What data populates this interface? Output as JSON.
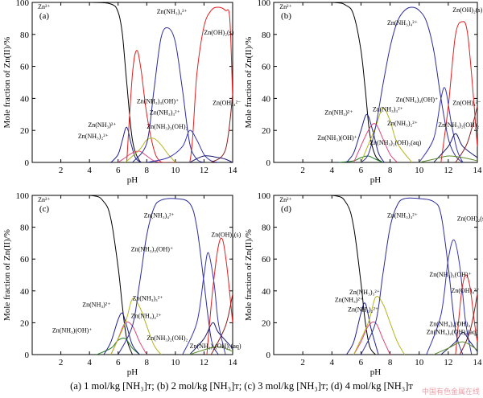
{
  "caption": "(a) 1 mol/kg [NH₃]ᴛ; (b) 2 mol/kg [NH₃]ᴛ; (c) 3 mol/kg [NH₃]ᴛ; (d) 4 mol/kg [NH₃]ᴛ",
  "watermark": "中国有色金属在线",
  "colors": {
    "Zn2+": "#000000",
    "Zn(NH3)2+": "#1f1f8f",
    "Zn(NH3)2 2+": "#e0457a",
    "Zn(NH3)3 2+": "#b5b520",
    "Zn(NH3)4 2+": "#2b2b9a",
    "Zn(NH3)(OH)+": "#1f7f1f",
    "Zn(NH3)3(OH)+": "#3434b4",
    "Zn(NH3)2(OH)2(aq)": "#5a8a2a",
    "Zn(OH)2(s)": "#e02020",
    "Zn(OH)3-": "#1a1a6e",
    "Zn(OH)4 2-": "#8a1a1a"
  },
  "chart_data": [
    {
      "type": "line",
      "panel": "(a)",
      "xlabel": "pH",
      "ylabel": "Mole fraction of Zn(II)/%",
      "xlim": [
        0,
        14
      ],
      "ylim": [
        0,
        100
      ],
      "xticks": [
        2,
        4,
        6,
        8,
        10,
        12,
        14
      ],
      "yticks": [
        0,
        20,
        40,
        60,
        80,
        100
      ],
      "series": [
        {
          "name": "Zn²⁺",
          "x": [
            0,
            4,
            5.5,
            6,
            6.3,
            6.6,
            7,
            7.5,
            8
          ],
          "y": [
            100,
            100,
            99,
            94,
            80,
            50,
            14,
            1,
            0
          ]
        },
        {
          "name": "Zn(NH₃)²⁺",
          "x": [
            5.5,
            6,
            6.3,
            6.6,
            6.9,
            7.2,
            7.6
          ],
          "y": [
            0,
            5,
            14,
            22,
            12,
            3,
            0
          ]
        },
        {
          "name": "Zn(NH₃)₂²⁺",
          "x": [
            6,
            6.5,
            7,
            7.5,
            8,
            8.5,
            9
          ],
          "y": [
            0,
            3,
            6,
            7,
            4,
            1,
            0
          ]
        },
        {
          "name": "Zn(OH)₂(s)",
          "x": [
            6.6,
            7,
            7.3,
            7.6,
            8,
            8.5,
            8.9,
            9.3,
            10,
            11,
            11.5,
            12,
            12.5,
            13,
            13.5,
            13.8,
            14
          ],
          "y": [
            0,
            55,
            70,
            58,
            30,
            8,
            1,
            0,
            0,
            0,
            55,
            85,
            95,
            97,
            95,
            90,
            40
          ]
        },
        {
          "name": "Zn(NH₃)₃²⁺",
          "x": [
            6.5,
            7.5,
            8,
            8.5,
            9,
            9.5,
            10
          ],
          "y": [
            0,
            8,
            14,
            15,
            11,
            5,
            0
          ]
        },
        {
          "name": "Zn(NH₃)₄²⁺",
          "x": [
            7,
            8,
            8.5,
            9,
            9.5,
            10,
            10.5,
            11,
            11.5,
            12
          ],
          "y": [
            0,
            12,
            45,
            78,
            84,
            75,
            45,
            12,
            2,
            0
          ]
        },
        {
          "name": "Zn(NH₃)₃(OH)⁺",
          "x": [
            8,
            9.5,
            10.5,
            11,
            11.5,
            12,
            12.5,
            13
          ],
          "y": [
            0,
            3,
            10,
            20,
            14,
            5,
            1,
            0
          ]
        },
        {
          "name": "Zn(OH)₄²⁻",
          "x": [
            12.5,
            13.5,
            14
          ],
          "y": [
            0,
            8,
            42
          ]
        },
        {
          "name": "Zn(NH₃)₂(OH)₂",
          "x": [
            11,
            12,
            13,
            13.5,
            14
          ],
          "y": [
            0,
            4,
            3,
            2,
            0
          ]
        }
      ],
      "annotations": [
        "(a)",
        "Zn²⁺",
        "Zn(NH₃)₄²⁺",
        "Zn(OH)₂(s)",
        "Zn(NH₃)₃(OH)⁺",
        "Zn(NH₃)₃²⁺",
        "Zn(OH)₄²⁻",
        "Zn(NH₃)²⁺",
        "Zn(NH₃)₂²⁺",
        "Zn(NH₃)₃(OH)₂"
      ]
    },
    {
      "type": "line",
      "panel": "(b)",
      "xlabel": "pH",
      "ylabel": "Mole fraction of Zn(II)/%",
      "xlim": [
        0,
        14
      ],
      "ylim": [
        0,
        100
      ],
      "xticks": [
        2,
        4,
        6,
        8,
        10,
        12,
        14
      ],
      "yticks": [
        0,
        20,
        40,
        60,
        80,
        100
      ],
      "series": [
        {
          "name": "Zn²⁺",
          "x": [
            0,
            4,
            5,
            5.5,
            6,
            6.3,
            6.6,
            7,
            7.5
          ],
          "y": [
            100,
            100,
            98,
            92,
            70,
            45,
            18,
            4,
            0
          ]
        },
        {
          "name": "Zn(NH₃)(OH)⁺",
          "x": [
            4.5,
            5.5,
            6,
            6.5,
            7,
            7.5
          ],
          "y": [
            0,
            1,
            3,
            4,
            2,
            0
          ]
        },
        {
          "name": "Zn(NH₃)²⁺",
          "x": [
            5,
            5.5,
            6,
            6.4,
            6.8,
            7.2,
            7.6
          ],
          "y": [
            0,
            6,
            20,
            30,
            20,
            6,
            0
          ]
        },
        {
          "name": "Zn(NH₃)₂²⁺",
          "x": [
            5.5,
            6.5,
            7,
            7.5,
            8,
            8.5
          ],
          "y": [
            0,
            20,
            24,
            15,
            5,
            0
          ]
        },
        {
          "name": "Zn(NH₃)₃²⁺",
          "x": [
            6,
            7,
            7.5,
            8,
            8.5,
            9.5
          ],
          "y": [
            0,
            22,
            34,
            26,
            12,
            0
          ]
        },
        {
          "name": "Zn(NH₃)₄²⁺",
          "x": [
            6,
            6.5,
            7,
            7.5,
            8,
            8.5,
            9,
            9.5,
            10,
            10.5,
            11,
            11.5,
            12,
            12.5,
            13
          ],
          "y": [
            0,
            5,
            22,
            48,
            72,
            88,
            95,
            97,
            95,
            88,
            70,
            40,
            15,
            4,
            0
          ]
        },
        {
          "name": "Zn(NH₃)₃(OH)⁺",
          "x": [
            10,
            11,
            11.5,
            11.8,
            12.2,
            12.6,
            13
          ],
          "y": [
            0,
            15,
            40,
            46,
            25,
            8,
            0
          ]
        },
        {
          "name": "Zn(OH)₂(s)",
          "x": [
            11.5,
            12,
            12.5,
            13,
            13.3,
            13.6,
            14
          ],
          "y": [
            0,
            35,
            80,
            88,
            82,
            55,
            10
          ]
        },
        {
          "name": "Zn(OH)₄²⁻",
          "x": [
            12.5,
            13.3,
            14
          ],
          "y": [
            0,
            12,
            35
          ]
        },
        {
          "name": "Zn(NH₃)₂(OH)₂",
          "x": [
            11,
            12,
            12.5,
            13,
            14
          ],
          "y": [
            0,
            10,
            18,
            10,
            3
          ]
        },
        {
          "name": "Zn(NH₃)₂(OH)₂(aq)",
          "x": [
            10,
            11,
            12,
            13,
            14
          ],
          "y": [
            0,
            2,
            4,
            3,
            1
          ]
        }
      ],
      "annotations": [
        "(b)",
        "Zn²⁺",
        "Zn(NH₃)₄²⁺",
        "Zn(OH)₂(s)",
        "Zn(NH₃)₃(OH)⁺",
        "Zn(NH₃)₃²⁺",
        "Zn(NH₃)²⁺",
        "Zn(NH₃)₂²⁺",
        "Zn(OH)₄²⁻",
        "Zn(NH₃)₂(OH)₂",
        "Zn(NH₃)(OH)⁺",
        "Zn(NH₃)₂(OH)₂(aq)"
      ]
    },
    {
      "type": "line",
      "panel": "(c)",
      "xlabel": "pH",
      "ylabel": "Mole fraction of Zn(II)/%",
      "xlim": [
        0,
        14
      ],
      "ylim": [
        0,
        100
      ],
      "xticks": [
        2,
        4,
        6,
        8,
        10,
        12,
        14
      ],
      "yticks": [
        0,
        20,
        40,
        60,
        80,
        100
      ],
      "series": [
        {
          "name": "Zn²⁺",
          "x": [
            0,
            4,
            5,
            5.5,
            6,
            6.3,
            6.6,
            7
          ],
          "y": [
            100,
            100,
            96,
            85,
            55,
            30,
            10,
            0
          ]
        },
        {
          "name": "Zn(NH₃)(OH)⁺",
          "x": [
            4.5,
            5.5,
            6,
            6.5,
            7,
            7.5
          ],
          "y": [
            0,
            4,
            9,
            10,
            4,
            0
          ]
        },
        {
          "name": "Zn(NH₃)²⁺",
          "x": [
            5,
            5.5,
            6,
            6.3,
            6.6,
            7,
            7.5
          ],
          "y": [
            0,
            8,
            22,
            26,
            18,
            6,
            0
          ]
        },
        {
          "name": "Zn(NH₃)₂²⁺",
          "x": [
            5.5,
            6,
            6.5,
            7,
            7.5,
            8
          ],
          "y": [
            0,
            10,
            20,
            18,
            8,
            0
          ]
        },
        {
          "name": "Zn(NH₃)₃²⁺",
          "x": [
            5.5,
            6.5,
            7,
            7.5,
            8,
            8.5,
            9
          ],
          "y": [
            0,
            20,
            35,
            30,
            18,
            6,
            0
          ]
        },
        {
          "name": "Zn(NH₃)₄²⁺",
          "x": [
            6,
            7,
            7.5,
            8,
            8.5,
            9,
            10,
            11,
            11.5,
            12,
            12.5,
            13
          ],
          "y": [
            0,
            18,
            45,
            75,
            92,
            97,
            98,
            95,
            80,
            45,
            10,
            0
          ]
        },
        {
          "name": "Zn(NH₃)₃(OH)⁺",
          "x": [
            10.5,
            11.5,
            12,
            12.3,
            12.7,
            13,
            13.5
          ],
          "y": [
            0,
            20,
            50,
            64,
            45,
            20,
            0
          ]
        },
        {
          "name": "Zn(OH)₂(s)",
          "x": [
            12.2,
            12.6,
            13,
            13.3,
            13.6,
            14
          ],
          "y": [
            0,
            40,
            68,
            72,
            55,
            20
          ]
        },
        {
          "name": "Zn(OH)₄²⁻",
          "x": [
            12.5,
            13.5,
            14
          ],
          "y": [
            0,
            18,
            38
          ]
        },
        {
          "name": "Zn(NH₃)₂(OH)₂",
          "x": [
            11,
            12,
            12.6,
            13,
            14
          ],
          "y": [
            0,
            10,
            20,
            14,
            4
          ]
        },
        {
          "name": "Zn(NH₃)₂(OH)₂(aq)",
          "x": [
            11,
            12,
            13,
            14
          ],
          "y": [
            0,
            3,
            5,
            2
          ]
        }
      ],
      "annotations": [
        "(c)",
        "Zn²⁺",
        "Zn(NH₃)₄²⁺",
        "Zn(OH)₂(s)",
        "Zn(NH₃)₃(OH)⁺",
        "Zn(NH₃)₃²⁺",
        "Zn(NH₃)²⁺",
        "Zn(NH₃)₂²⁺",
        "Zn(NH₃)(OH)⁺",
        "Zn(NH₃)₂(OH)₂",
        "Zn(NH₃)₂(OH)₂(aq)"
      ]
    },
    {
      "type": "line",
      "panel": "(d)",
      "xlabel": "pH",
      "ylabel": "Mole fraction of Zn(II)/%",
      "xlim": [
        0,
        14
      ],
      "ylim": [
        0,
        100
      ],
      "xticks": [
        2,
        4,
        6,
        8,
        10,
        12,
        14
      ],
      "yticks": [
        0,
        20,
        40,
        60,
        80,
        100
      ],
      "series": [
        {
          "name": "Zn²⁺",
          "x": [
            0,
            4,
            5,
            5.5,
            6,
            6.3,
            6.6,
            7
          ],
          "y": [
            100,
            100,
            95,
            80,
            45,
            20,
            5,
            0
          ]
        },
        {
          "name": "Zn(NH₃)²⁺",
          "x": [
            5,
            5.5,
            6,
            6.3,
            6.7,
            7.2
          ],
          "y": [
            0,
            8,
            26,
            32,
            16,
            0
          ]
        },
        {
          "name": "Zn(NH₃)₂²⁺",
          "x": [
            5.5,
            6,
            6.5,
            7,
            7.5,
            8
          ],
          "y": [
            0,
            8,
            18,
            20,
            10,
            0
          ]
        },
        {
          "name": "Zn(NH₃)₃²⁺",
          "x": [
            5.5,
            6.5,
            7,
            7.5,
            8,
            8.5,
            9
          ],
          "y": [
            0,
            20,
            36,
            32,
            20,
            8,
            0
          ]
        },
        {
          "name": "Zn(NH₃)₄²⁺",
          "x": [
            6,
            7,
            7.5,
            8,
            8.5,
            9,
            10,
            11,
            11.5,
            12,
            12.5,
            13
          ],
          "y": [
            0,
            20,
            50,
            80,
            94,
            98,
            98,
            96,
            88,
            55,
            15,
            0
          ]
        },
        {
          "name": "Zn(NH₃)₃(OH)⁺",
          "x": [
            10.5,
            11.5,
            12,
            12.4,
            12.8,
            13.2,
            13.6
          ],
          "y": [
            0,
            25,
            60,
            72,
            55,
            20,
            0
          ]
        },
        {
          "name": "Zn(OH)₂(s)",
          "x": [
            12.5,
            12.9,
            13.2,
            13.5,
            13.8,
            14
          ],
          "y": [
            0,
            38,
            50,
            42,
            20,
            8
          ]
        },
        {
          "name": "Zn(OH)₄²⁻",
          "x": [
            12.8,
            13.5,
            14
          ],
          "y": [
            0,
            15,
            38
          ]
        },
        {
          "name": "Zn(NH₃)₂(OH)₂",
          "x": [
            11.5,
            12.5,
            13,
            13.5,
            14
          ],
          "y": [
            0,
            8,
            14,
            8,
            2
          ]
        },
        {
          "name": "Zn(NH₃)₂(OH)₂(aq)",
          "x": [
            11,
            12,
            13,
            14
          ],
          "y": [
            0,
            4,
            8,
            3
          ]
        }
      ],
      "annotations": [
        "(d)",
        "Zn²⁺",
        "Zn(NH₃)₄²⁺",
        "Zn(OH)₂(s)",
        "Zn(NH₃)₃(OH)⁺",
        "Zn(OH)₄²⁻",
        "Zn(NH₃)²⁺",
        "Zn(NH₃)₃²⁺",
        "Zn(NH₃)₂²⁺",
        "Zn(NH₃)₂(OH)₂",
        "Zn(NH₃)₂(OH)₂(aq)"
      ]
    }
  ]
}
